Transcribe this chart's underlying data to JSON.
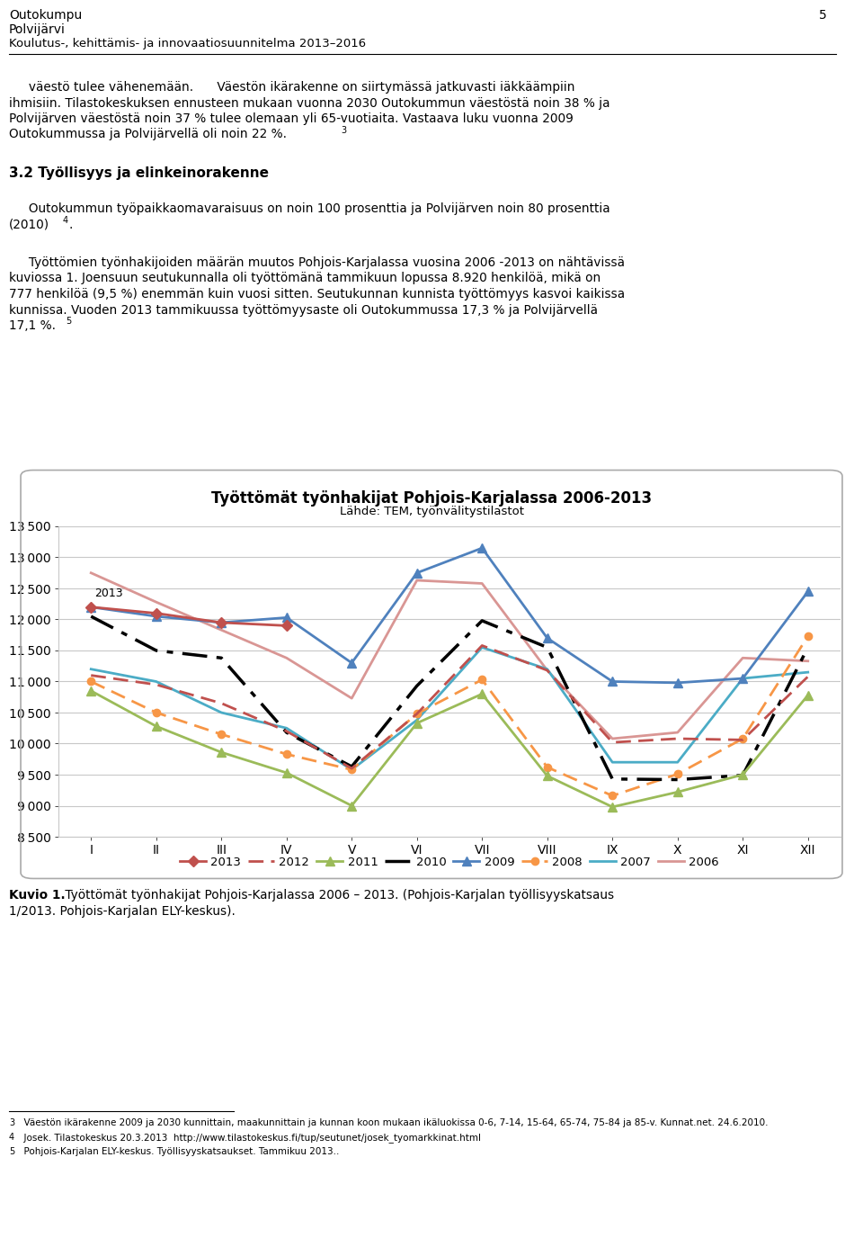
{
  "title": "Työttömät työnhakijat Pohjois-Karjalassa 2006-2013",
  "subtitle": "Lähde: TEM, työnvälitystilastot",
  "months": [
    "I",
    "II",
    "III",
    "IV",
    "V",
    "VI",
    "VII",
    "VIII",
    "IX",
    "X",
    "XI",
    "XII"
  ],
  "ylim": [
    8500,
    13500
  ],
  "yticks": [
    8500,
    9000,
    9500,
    10000,
    10500,
    11000,
    11500,
    12000,
    12500,
    13000,
    13500
  ],
  "series": {
    "2013": {
      "values": [
        12200,
        12100,
        11950,
        11900,
        null,
        null,
        null,
        null,
        null,
        null,
        null,
        null
      ],
      "color": "#c0504d",
      "linestyle": "-",
      "marker": "D",
      "linewidth": 2.0,
      "markersize": 6,
      "zorder": 10
    },
    "2012": {
      "values": [
        11100,
        10950,
        10650,
        10200,
        9600,
        10480,
        11580,
        11180,
        10020,
        10080,
        10060,
        11080
      ],
      "color": "#c0504d",
      "linestyle": "--",
      "marker": null,
      "linewidth": 2.0,
      "markersize": 0,
      "zorder": 9,
      "dash": [
        6,
        3
      ]
    },
    "2011": {
      "values": [
        10850,
        10280,
        9860,
        9530,
        9000,
        10330,
        10800,
        9480,
        8980,
        9220,
        9500,
        10780
      ],
      "color": "#9bbb59",
      "linestyle": "-",
      "marker": "^",
      "linewidth": 2.0,
      "markersize": 7,
      "zorder": 8
    },
    "2010": {
      "values": [
        12050,
        11500,
        11380,
        10180,
        9630,
        10930,
        11980,
        11550,
        9430,
        9420,
        9490,
        11550
      ],
      "color": "#000000",
      "linestyle": "--",
      "marker": null,
      "linewidth": 2.5,
      "markersize": 0,
      "zorder": 7,
      "dash": [
        8,
        3,
        2,
        3
      ]
    },
    "2009": {
      "values": [
        12200,
        12050,
        11950,
        12030,
        11300,
        12750,
        13150,
        11700,
        11000,
        10980,
        11050,
        12450
      ],
      "color": "#4f81bd",
      "linestyle": "-",
      "marker": "^",
      "linewidth": 2.0,
      "markersize": 7,
      "zorder": 6
    },
    "2008": {
      "values": [
        11000,
        10500,
        10150,
        9830,
        9580,
        10480,
        11030,
        9620,
        9160,
        9510,
        10080,
        11730
      ],
      "color": "#f79646",
      "linestyle": "--",
      "marker": "o",
      "linewidth": 2.0,
      "markersize": 6,
      "zorder": 5,
      "dash": [
        6,
        3
      ]
    },
    "2007": {
      "values": [
        11200,
        11000,
        10500,
        10250,
        9580,
        10380,
        11550,
        11200,
        9700,
        9700,
        11050,
        11150
      ],
      "color": "#4bacc6",
      "linestyle": "-",
      "marker": null,
      "linewidth": 2.0,
      "markersize": 0,
      "zorder": 4
    },
    "2006": {
      "values": [
        12750,
        12280,
        11830,
        11380,
        10730,
        12630,
        12580,
        11180,
        10080,
        10180,
        11380,
        11330
      ],
      "color": "#d99694",
      "linestyle": "-",
      "marker": null,
      "linewidth": 2.0,
      "markersize": 0,
      "zorder": 3
    }
  },
  "legend_order": [
    "2013",
    "2012",
    "2011",
    "2010",
    "2009",
    "2008",
    "2007",
    "2006"
  ],
  "header_line1": "Outokumpu",
  "header_line2": "Polvijärvi",
  "header_line3": "Koulutus-, kehittämis- ja innovaatiosuunnitelma 2013–2016",
  "page_num": "5",
  "body1_indent": "     väestö tulee vähenemään.      Väestön ikärakenne on siirtymässä jatkuvasti iäkkäämpiin",
  "body1_line2": "ihmisiin. Tilastokeskuksen ennusteen mukaan vuonna 2030 Outokummun väestöstä noin 38 % ja",
  "body1_line3": "Polvijärven väestöstä noin 37 % tulee olemaan yli 65-vuotiaita. Vastaava luku vuonna 2009",
  "body1_line4": "Outokummussa ja Polvijärvellä oli noin 22 %.",
  "section32": "3.2 Työllisyys ja elinkeinorakenne",
  "body2_line1": "     Outokummun työpaikkaomavaraisuus on noin 100 prosenttia ja Polvijärven noin 80 prosenttia",
  "body2_line2": "(2010)",
  "body3_line1": "     Työttömien työnhakijoiden määrän muutos Pohjois-Karjalassa vuosina 2006 -2013 on nähtävissä",
  "body3_line2": "kuviossa 1. Joensuun seutukunnalla oli työttömänä tammikuun lopussa 8.920 henkilöä, mikä on",
  "body3_line3": "777 henkilöä (9,5 %) enemmän kuin vuosi sitten. Seutukunnan kunnista työttömyys kasvoi kaikissa",
  "body3_line4": "kunnissa. Vuoden 2013 tammikuussa työttömyysaste oli Outokummussa 17,3 % ja Polvijärvellä",
  "body3_line5": "17,1 %.",
  "caption_bold": "Kuvio 1.",
  "caption_rest": " Työttömät työnhakijat Pohjois-Karjalassa 2006 – 2013. (Pohjois-Karjalan työllisyyskatsaus",
  "caption_line2": "1/2013. Pohjois-Karjalan ELY-keskus).",
  "fn1": "  Väestön ikärakenne 2009 ja 2030 kunnittain, maakunnittain ja kunnan koon mukaan ikäluokissa 0-6, 7-14, 15-64, 65-74, 75-84 ja 85-v. Kunnat.net. 24.6.2010.",
  "fn2": "  Josek. Tilastokeskus 20.3.2013  http://www.tilastokeskus.fi/tup/seutunet/josek_tyomarkkinat.html",
  "fn3": "  Pohjois-Karjalan ELY-keskus. Työllisyyskatsaukset. Tammikuu 2013.."
}
